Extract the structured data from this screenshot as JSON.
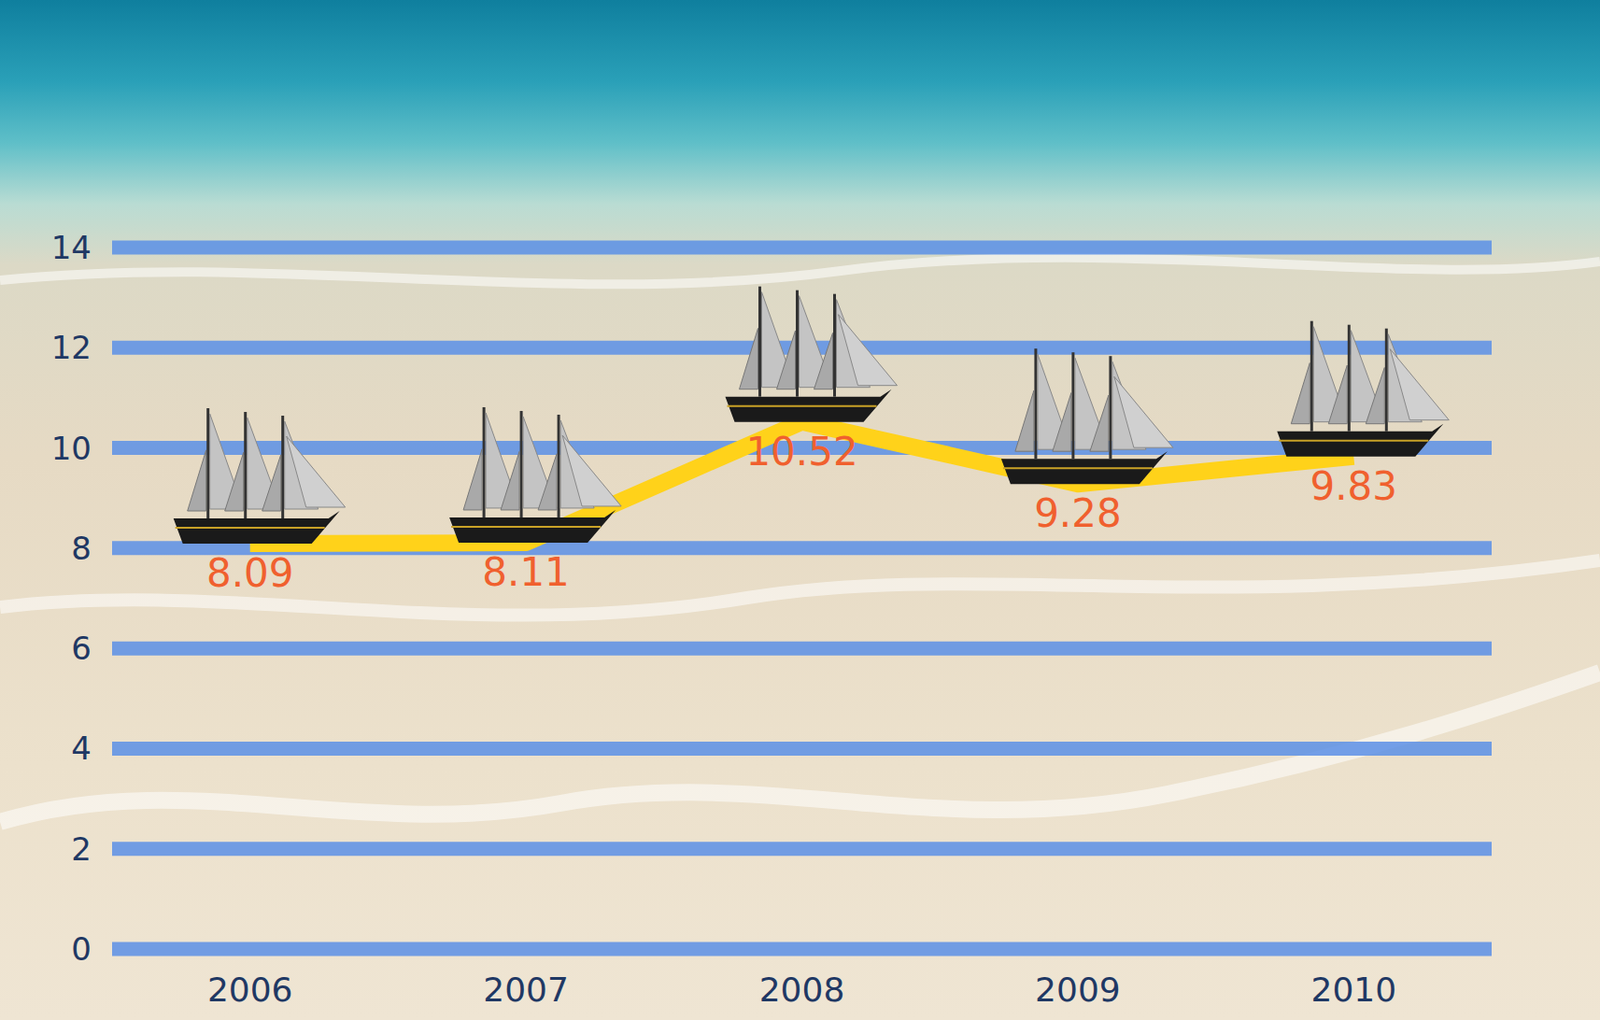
{
  "chart_data": {
    "type": "line",
    "categories": [
      "2006",
      "2007",
      "2008",
      "2009",
      "2010"
    ],
    "values": [
      8.09,
      8.11,
      10.52,
      9.28,
      9.83
    ],
    "color": "#ffd21a",
    "marker": "ship",
    "ylim": [
      0,
      14
    ],
    "yticks": [
      0,
      2,
      4,
      6,
      8,
      10,
      12,
      14
    ],
    "grid": true,
    "data_labels": true
  }
}
